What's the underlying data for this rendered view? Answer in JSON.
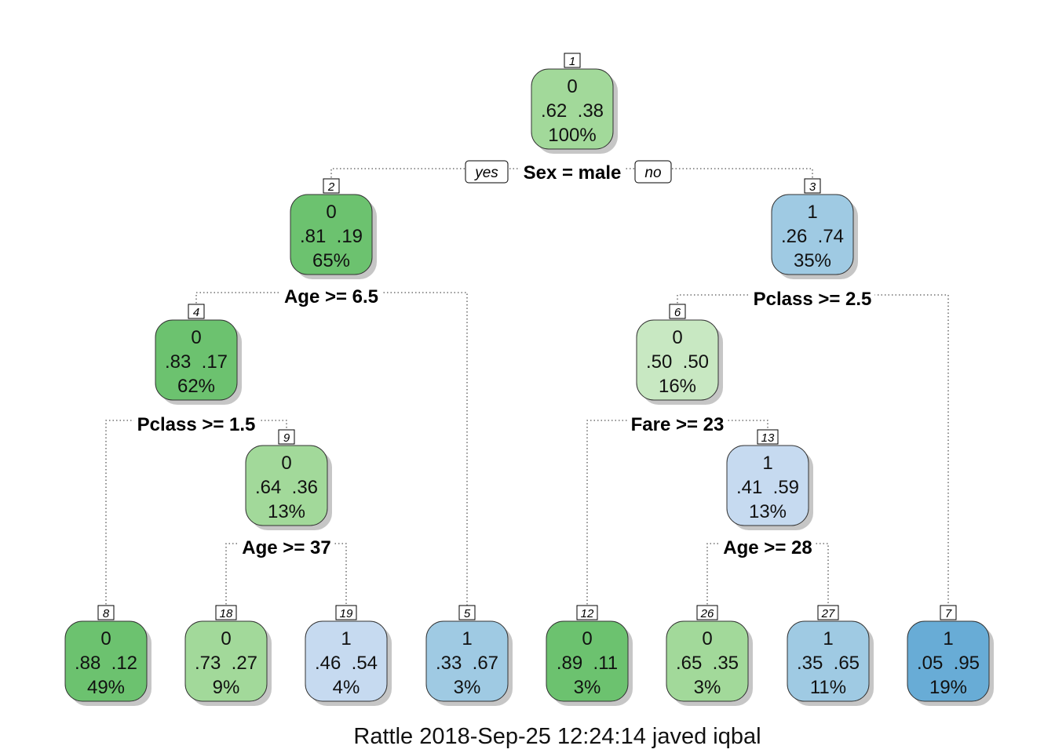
{
  "colors": {
    "green_dark": "#6cc26f",
    "green_mid": "#a2d99a",
    "green_light": "#c8e8c2",
    "blue_light": "#c6daf0",
    "blue_mid": "#9fcae3",
    "blue_dark": "#68acd6",
    "border": "#333333",
    "shadow": "#c6c6c6"
  },
  "yes_label": "yes",
  "no_label": "no",
  "nodes": [
    {
      "id": "1",
      "class": "0",
      "probs": ".62  .38",
      "pct": "100%",
      "fill": "green_mid",
      "split": "Sex = male"
    },
    {
      "id": "2",
      "class": "0",
      "probs": ".81  .19",
      "pct": "65%",
      "fill": "green_dark",
      "split": "Age >= 6.5"
    },
    {
      "id": "3",
      "class": "1",
      "probs": ".26  .74",
      "pct": "35%",
      "fill": "blue_mid",
      "split": "Pclass >= 2.5"
    },
    {
      "id": "4",
      "class": "0",
      "probs": ".83  .17",
      "pct": "62%",
      "fill": "green_dark",
      "split": "Pclass >= 1.5"
    },
    {
      "id": "6",
      "class": "0",
      "probs": ".50  .50",
      "pct": "16%",
      "fill": "green_light",
      "split": "Fare >= 23"
    },
    {
      "id": "9",
      "class": "0",
      "probs": ".64  .36",
      "pct": "13%",
      "fill": "green_mid",
      "split": "Age >= 37"
    },
    {
      "id": "13",
      "class": "1",
      "probs": ".41  .59",
      "pct": "13%",
      "fill": "blue_light",
      "split": "Age >= 28"
    },
    {
      "id": "8",
      "class": "0",
      "probs": ".88  .12",
      "pct": "49%",
      "fill": "green_dark"
    },
    {
      "id": "18",
      "class": "0",
      "probs": ".73  .27",
      "pct": "9%",
      "fill": "green_mid"
    },
    {
      "id": "19",
      "class": "1",
      "probs": ".46  .54",
      "pct": "4%",
      "fill": "blue_light"
    },
    {
      "id": "5",
      "class": "1",
      "probs": ".33  .67",
      "pct": "3%",
      "fill": "blue_mid"
    },
    {
      "id": "12",
      "class": "0",
      "probs": ".89  .11",
      "pct": "3%",
      "fill": "green_dark"
    },
    {
      "id": "26",
      "class": "0",
      "probs": ".65  .35",
      "pct": "3%",
      "fill": "green_mid"
    },
    {
      "id": "27",
      "class": "1",
      "probs": ".35  .65",
      "pct": "11%",
      "fill": "blue_mid"
    },
    {
      "id": "7",
      "class": "1",
      "probs": ".05  .95",
      "pct": "19%",
      "fill": "blue_dark"
    }
  ],
  "edges": [
    {
      "parent": "1",
      "left": "2",
      "right": "3"
    },
    {
      "parent": "2",
      "left": "4",
      "right": "5"
    },
    {
      "parent": "3",
      "left": "6",
      "right": "7"
    },
    {
      "parent": "4",
      "left": "8",
      "right": "9"
    },
    {
      "parent": "6",
      "left": "12",
      "right": "13"
    },
    {
      "parent": "9",
      "left": "18",
      "right": "19"
    },
    {
      "parent": "13",
      "left": "26",
      "right": "27"
    }
  ],
  "caption": "Rattle 2018-Sep-25 12:24:14 javed iqbal"
}
